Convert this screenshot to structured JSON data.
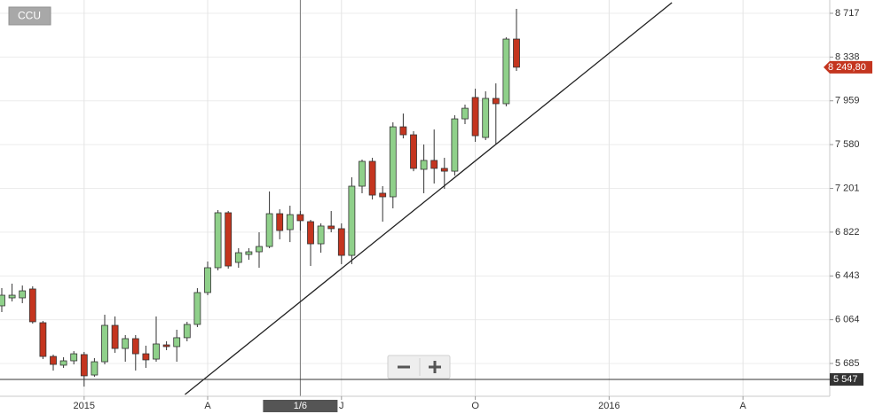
{
  "symbol": "CCU",
  "chart_data": {
    "type": "candlestick",
    "categories": [
      null,
      null,
      null,
      null,
      null,
      null,
      null,
      null,
      "2015",
      null,
      null,
      null,
      null,
      null,
      null,
      null,
      null,
      null,
      null,
      null,
      "A",
      null,
      null,
      null,
      null,
      null,
      null,
      null,
      null,
      "1/6",
      null,
      null,
      null,
      "J",
      null,
      null,
      null,
      null,
      null,
      null,
      null,
      null,
      null,
      null,
      null,
      null,
      "O",
      null,
      null,
      null,
      null,
      null,
      null,
      null,
      null,
      null,
      null,
      null,
      null,
      "2016",
      null,
      null,
      null,
      null,
      null,
      null,
      null,
      null,
      null,
      null,
      null,
      null,
      "A",
      null,
      null,
      null,
      null,
      null,
      null,
      null,
      null
    ],
    "crosshair": 29,
    "open": [
      6184,
      6253,
      6253,
      6330,
      6038,
      5746,
      5670,
      5708,
      5762,
      5585,
      5700,
      6015,
      5815,
      5900,
      5769,
      5723,
      5846,
      5831,
      5908,
      6023,
      6299,
      6514,
      6990,
      6560,
      6629,
      6652,
      6698,
      6982,
      6844,
      6974,
      6913,
      6721,
      6875,
      6852,
      6621,
      7220,
      7435,
      7159,
      7128,
      7734,
      7665,
      7366,
      7443,
      7374,
      7350,
      7803,
      7988,
      7642,
      7980,
      7934,
      8494,
      null,
      null,
      null,
      null,
      null,
      null,
      null,
      null,
      null,
      null,
      null,
      null,
      null,
      null,
      null,
      null,
      null,
      null,
      null,
      null,
      null,
      null,
      null,
      null,
      null,
      null,
      null,
      null,
      null,
      null
    ],
    "high": [
      6337,
      6376,
      6360,
      6353,
      6053,
      5762,
      5739,
      5792,
      5785,
      5731,
      6107,
      6092,
      5931,
      5931,
      5839,
      6092,
      5877,
      5977,
      6046,
      6337,
      6568,
      7013,
      7005,
      6683,
      6683,
      6821,
      7174,
      7020,
      7051,
      7005,
      6928,
      6898,
      7005,
      6898,
      7297,
      7450,
      7466,
      7220,
      7773,
      7849,
      7696,
      7581,
      7711,
      7466,
      7834,
      7926,
      8064,
      8041,
      8110,
      8509,
      8755,
      null,
      null,
      null,
      null,
      null,
      null,
      null,
      null,
      null,
      null,
      null,
      null,
      null,
      null,
      null,
      null,
      null,
      null,
      null,
      null,
      null,
      null,
      null,
      null,
      null,
      null,
      null,
      null,
      null,
      null
    ],
    "low": [
      6130,
      6222,
      6207,
      6030,
      5723,
      5624,
      5647,
      5677,
      5485,
      5570,
      5677,
      5777,
      5700,
      5624,
      5647,
      5700,
      5800,
      5700,
      5877,
      6000,
      6276,
      6491,
      6506,
      6514,
      6583,
      6514,
      6683,
      6760,
      6736,
      6836,
      6529,
      6644,
      6821,
      6545,
      6545,
      7159,
      7105,
      6913,
      7028,
      7634,
      7350,
      7159,
      7243,
      7197,
      7312,
      7757,
      7604,
      7619,
      7581,
      7911,
      8218,
      null,
      null,
      null,
      null,
      null,
      null,
      null,
      null,
      null,
      null,
      null,
      null,
      null,
      null,
      null,
      null,
      null,
      null,
      null,
      null,
      null,
      null,
      null,
      null,
      null,
      null,
      null,
      null,
      null,
      null
    ],
    "close": [
      6276,
      6276,
      6314,
      6046,
      5746,
      5677,
      5708,
      5769,
      5578,
      5700,
      6015,
      5815,
      5900,
      5769,
      5716,
      5854,
      5831,
      5908,
      6023,
      6299,
      6514,
      6990,
      6529,
      6644,
      6652,
      6698,
      6982,
      6836,
      6974,
      6921,
      6721,
      6875,
      6852,
      6621,
      7220,
      7435,
      7143,
      7128,
      7734,
      7665,
      7374,
      7443,
      7374,
      7350,
      7803,
      7895,
      7657,
      7980,
      7934,
      8494,
      8250,
      null,
      null,
      null,
      null,
      null,
      null,
      null,
      null,
      null,
      null,
      null,
      null,
      null,
      null,
      null,
      null,
      null,
      null,
      null,
      null,
      null,
      null,
      null,
      null,
      null,
      null,
      null,
      null,
      null,
      null
    ],
    "up_color": "#8fd08a",
    "down_color": "#c4351f",
    "ylim": [
      5401,
      8832
    ],
    "yticks": [
      {
        "value": 5685,
        "label": "5 685"
      },
      {
        "value": 6064,
        "label": "6 064"
      },
      {
        "value": 6443,
        "label": "6 443"
      },
      {
        "value": 6822,
        "label": "6 822"
      },
      {
        "value": 7201,
        "label": "7 201"
      },
      {
        "value": 7580,
        "label": "7 580"
      },
      {
        "value": 7959,
        "label": "7 959"
      },
      {
        "value": 8338,
        "label": "8 338"
      },
      {
        "value": 8717,
        "label": "8 717"
      }
    ],
    "grid": true,
    "trend_line": {
      "x": [
        17.8,
        65.1
      ],
      "values": [
        5416,
        8809
      ],
      "color": "#222222"
    },
    "last_price": {
      "value": 8249.8,
      "label": "8 249,80",
      "color": "#c4351f"
    },
    "level_line": {
      "value": 5547,
      "label": "5 547",
      "color": "#333333"
    }
  }
}
